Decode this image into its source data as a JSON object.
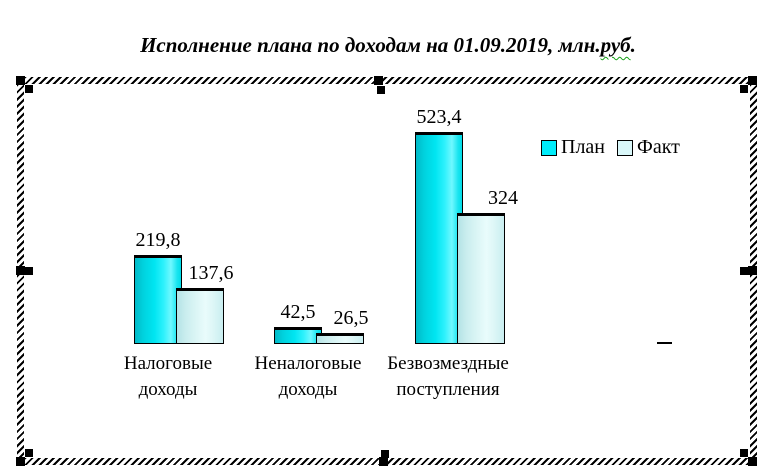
{
  "document": {
    "title": {
      "text": "Исполнение плана по доходам на 01.09.2019, млн.руб.",
      "before": "Исполнение плана по доходам на 01.09.2019, млн.",
      "misspelled": "руб",
      "after": "."
    },
    "spellcheck_color": "#15a015"
  },
  "chart_data": {
    "type": "bar",
    "title": "Исполнение плана по доходам на 01.09.2019, млн.руб.",
    "categories": [
      "Налоговые доходы",
      "Неналоговые доходы",
      "Безвозмездные поступления"
    ],
    "category_lines": [
      [
        "Налоговые",
        "доходы"
      ],
      [
        "Неналоговые",
        "доходы"
      ],
      [
        "Безвозмездные",
        "поступления"
      ]
    ],
    "series": [
      {
        "name": "План",
        "values": [
          219.8,
          42.5,
          523.4
        ],
        "labels": [
          "219,8",
          "42,5",
          "523,4"
        ],
        "color": "#00ecfa"
      },
      {
        "name": "Факт",
        "values": [
          137.6,
          26.5,
          324
        ],
        "labels": [
          "137,6",
          "26,5",
          "324"
        ],
        "color": "#d9f7f9"
      }
    ],
    "data_labels": true,
    "legend_position": "top-right",
    "axes_visible": false,
    "gridlines": false,
    "ylim": [
      0,
      550
    ],
    "colors": {
      "plan": "#00ecfa",
      "fact": "#d9f7f9",
      "outline": "#000000"
    }
  }
}
